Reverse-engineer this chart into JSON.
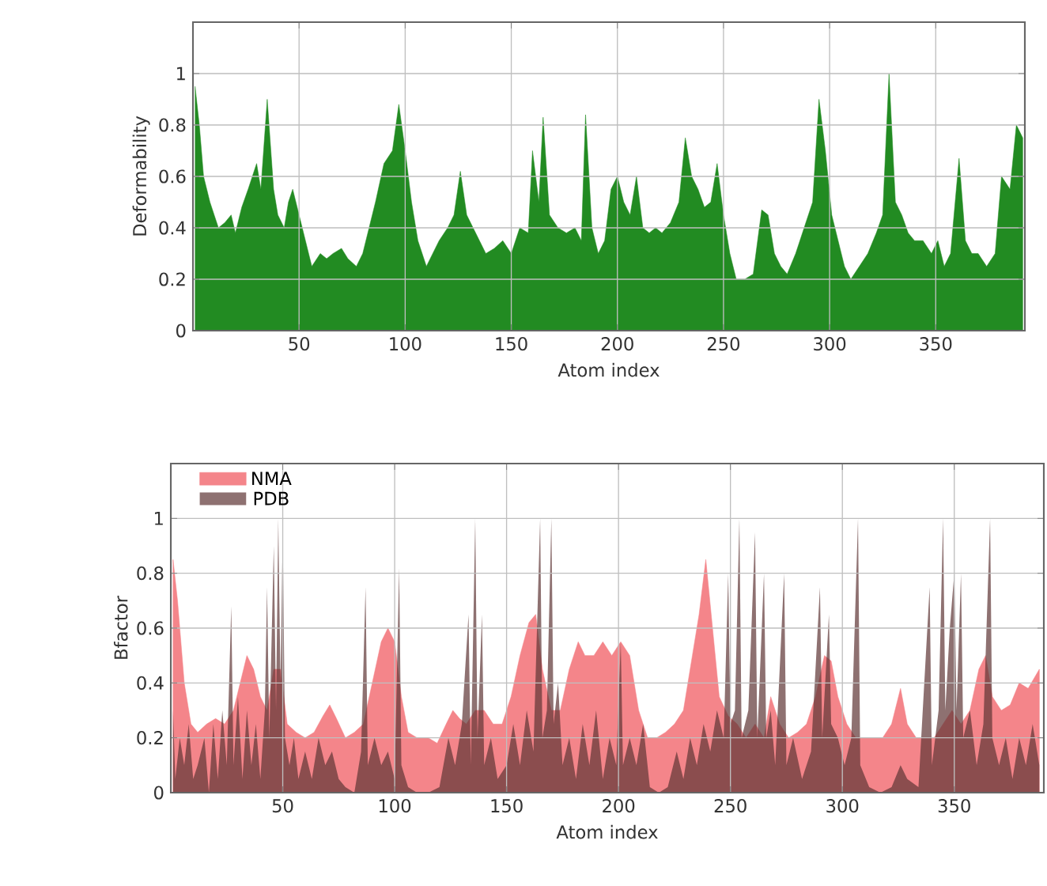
{
  "chart_data": [
    {
      "type": "area",
      "xlabel": "Atom index",
      "ylabel": "Deformability",
      "color": "#228b22",
      "xlim": [
        0,
        392
      ],
      "ylim": [
        0,
        1.2
      ],
      "xticks": [
        50,
        100,
        150,
        200,
        250,
        300,
        350
      ],
      "yticks": [
        0,
        0.2,
        0.4,
        0.6,
        0.8,
        1
      ],
      "grid": true,
      "x": [
        1,
        3,
        5,
        8,
        10,
        12,
        15,
        18,
        20,
        23,
        26,
        28,
        30,
        32,
        35,
        38,
        40,
        43,
        45,
        47,
        50,
        53,
        56,
        60,
        63,
        66,
        70,
        73,
        77,
        80,
        83,
        86,
        90,
        94,
        97,
        100,
        103,
        106,
        110,
        113,
        116,
        120,
        123,
        126,
        129,
        132,
        135,
        138,
        142,
        146,
        150,
        154,
        158,
        160,
        163,
        165,
        168,
        172,
        176,
        180,
        183,
        185,
        188,
        191,
        194,
        197,
        200,
        203,
        206,
        209,
        212,
        215,
        218,
        221,
        225,
        229,
        232,
        235,
        238,
        241,
        244,
        247,
        250,
        253,
        256,
        260,
        264,
        268,
        271,
        274,
        277,
        280,
        284,
        288,
        292,
        295,
        298,
        301,
        304,
        307,
        310,
        314,
        318,
        322,
        325,
        328,
        331,
        334,
        337,
        340,
        344,
        348,
        351,
        354,
        357,
        361,
        364,
        367,
        370,
        374,
        378,
        381,
        385,
        388,
        391
      ],
      "values": [
        0.95,
        0.8,
        0.6,
        0.5,
        0.45,
        0.4,
        0.42,
        0.45,
        0.38,
        0.48,
        0.55,
        0.6,
        0.65,
        0.55,
        0.9,
        0.55,
        0.45,
        0.4,
        0.5,
        0.55,
        0.45,
        0.35,
        0.25,
        0.3,
        0.28,
        0.3,
        0.32,
        0.28,
        0.25,
        0.3,
        0.4,
        0.5,
        0.65,
        0.7,
        0.88,
        0.7,
        0.5,
        0.35,
        0.25,
        0.3,
        0.35,
        0.4,
        0.45,
        0.62,
        0.45,
        0.4,
        0.35,
        0.3,
        0.32,
        0.35,
        0.3,
        0.4,
        0.38,
        0.7,
        0.5,
        0.83,
        0.45,
        0.4,
        0.38,
        0.4,
        0.35,
        0.84,
        0.4,
        0.3,
        0.35,
        0.55,
        0.6,
        0.5,
        0.45,
        0.6,
        0.4,
        0.38,
        0.4,
        0.38,
        0.42,
        0.5,
        0.75,
        0.6,
        0.55,
        0.48,
        0.5,
        0.65,
        0.45,
        0.3,
        0.2,
        0.2,
        0.22,
        0.47,
        0.45,
        0.3,
        0.25,
        0.22,
        0.3,
        0.4,
        0.5,
        0.9,
        0.7,
        0.45,
        0.35,
        0.25,
        0.2,
        0.25,
        0.3,
        0.38,
        0.45,
        1.0,
        0.5,
        0.45,
        0.38,
        0.35,
        0.35,
        0.3,
        0.35,
        0.25,
        0.3,
        0.67,
        0.35,
        0.3,
        0.3,
        0.25,
        0.3,
        0.6,
        0.55,
        0.8,
        0.75
      ]
    },
    {
      "type": "area",
      "xlabel": "Atom index",
      "ylabel": "Bfactor",
      "xlim": [
        0,
        390
      ],
      "ylim": [
        0,
        1.2
      ],
      "xticks": [
        50,
        100,
        150,
        200,
        250,
        300,
        350
      ],
      "yticks": [
        0,
        0.2,
        0.4,
        0.6,
        0.8,
        1
      ],
      "grid": true,
      "legend": "top left",
      "series": [
        {
          "name": "NMA",
          "color": "#f4858a",
          "x": [
            1,
            3,
            6,
            9,
            12,
            16,
            20,
            24,
            28,
            31,
            34,
            37,
            40,
            43,
            46,
            49,
            52,
            56,
            60,
            64,
            68,
            71,
            74,
            78,
            82,
            86,
            90,
            94,
            97,
            100,
            103,
            106,
            110,
            115,
            119,
            123,
            126,
            129,
            132,
            136,
            140,
            144,
            148,
            152,
            156,
            160,
            163,
            166,
            170,
            174,
            178,
            182,
            185,
            189,
            193,
            197,
            201,
            205,
            209,
            213,
            217,
            221,
            225,
            229,
            233,
            236,
            239,
            242,
            245,
            249,
            253,
            257,
            261,
            265,
            268,
            272,
            276,
            280,
            284,
            288,
            292,
            295,
            298,
            302,
            306,
            310,
            314,
            318,
            322,
            326,
            329,
            333,
            337,
            341,
            345,
            349,
            353,
            357,
            361,
            364,
            367,
            371,
            375,
            379,
            383,
            388
          ],
          "values": [
            0.85,
            0.7,
            0.4,
            0.25,
            0.22,
            0.25,
            0.27,
            0.25,
            0.3,
            0.4,
            0.5,
            0.45,
            0.35,
            0.3,
            0.45,
            0.45,
            0.25,
            0.22,
            0.2,
            0.22,
            0.28,
            0.32,
            0.27,
            0.2,
            0.22,
            0.25,
            0.4,
            0.55,
            0.6,
            0.55,
            0.35,
            0.22,
            0.2,
            0.2,
            0.18,
            0.25,
            0.3,
            0.27,
            0.25,
            0.3,
            0.3,
            0.25,
            0.25,
            0.35,
            0.5,
            0.62,
            0.65,
            0.45,
            0.3,
            0.3,
            0.45,
            0.55,
            0.5,
            0.5,
            0.55,
            0.5,
            0.55,
            0.5,
            0.3,
            0.2,
            0.2,
            0.22,
            0.25,
            0.3,
            0.5,
            0.65,
            0.85,
            0.6,
            0.35,
            0.28,
            0.25,
            0.2,
            0.25,
            0.2,
            0.35,
            0.25,
            0.2,
            0.22,
            0.25,
            0.35,
            0.5,
            0.48,
            0.35,
            0.25,
            0.2,
            0.2,
            0.2,
            0.2,
            0.25,
            0.38,
            0.25,
            0.2,
            0.2,
            0.2,
            0.25,
            0.3,
            0.25,
            0.3,
            0.45,
            0.5,
            0.35,
            0.3,
            0.32,
            0.4,
            0.38,
            0.45
          ]
        },
        {
          "name": "PDB",
          "color": "#5e3434",
          "x": [
            1,
            2,
            4,
            6,
            8,
            10,
            12,
            15,
            17,
            19,
            21,
            23,
            25,
            27,
            28,
            30,
            32,
            34,
            36,
            38,
            40,
            42,
            43,
            44,
            46,
            47,
            48,
            49,
            50,
            51,
            53,
            55,
            57,
            60,
            63,
            66,
            69,
            72,
            75,
            78,
            82,
            85,
            87,
            88,
            91,
            94,
            97,
            100,
            102,
            103,
            106,
            110,
            115,
            120,
            124,
            127,
            130,
            133,
            134,
            136,
            137,
            139,
            140,
            143,
            146,
            150,
            153,
            156,
            159,
            162,
            165,
            166,
            168,
            170,
            171,
            173,
            175,
            178,
            181,
            184,
            187,
            190,
            193,
            196,
            199,
            201,
            202,
            205,
            208,
            211,
            214,
            218,
            222,
            226,
            229,
            232,
            235,
            238,
            241,
            244,
            247,
            249,
            250,
            252,
            254,
            255,
            258,
            261,
            262,
            265,
            266,
            268,
            270,
            274,
            275,
            278,
            282,
            286,
            290,
            291,
            294,
            295,
            298,
            301,
            304,
            307,
            308,
            312,
            317,
            322,
            326,
            329,
            334,
            339,
            340,
            343,
            345,
            346,
            348,
            350,
            351,
            353,
            354,
            357,
            360,
            363,
            366,
            367,
            370,
            373,
            376,
            379,
            382,
            385,
            388
          ],
          "values": [
            0.3,
            0.05,
            0.2,
            0.1,
            0.25,
            0.05,
            0.1,
            0.2,
            0.0,
            0.25,
            0.05,
            0.3,
            0.1,
            0.68,
            0.1,
            0.35,
            0.05,
            0.3,
            0.1,
            0.25,
            0.05,
            0.3,
            0.75,
            0.2,
            0.9,
            0.3,
            1.0,
            0.4,
            0.95,
            0.2,
            0.1,
            0.2,
            0.05,
            0.15,
            0.05,
            0.2,
            0.1,
            0.15,
            0.05,
            0.02,
            0.0,
            0.15,
            0.75,
            0.1,
            0.2,
            0.1,
            0.15,
            0.05,
            0.82,
            0.1,
            0.02,
            0.0,
            0.0,
            0.02,
            0.2,
            0.1,
            0.25,
            0.65,
            0.1,
            1.0,
            0.2,
            0.65,
            0.1,
            0.2,
            0.05,
            0.1,
            0.25,
            0.1,
            0.3,
            0.15,
            1.0,
            0.2,
            0.3,
            1.0,
            0.25,
            0.4,
            0.1,
            0.2,
            0.05,
            0.25,
            0.1,
            0.3,
            0.05,
            0.2,
            0.1,
            0.55,
            0.1,
            0.2,
            0.1,
            0.25,
            0.02,
            0.0,
            0.02,
            0.15,
            0.05,
            0.2,
            0.1,
            0.25,
            0.15,
            0.3,
            0.2,
            0.8,
            0.25,
            0.3,
            1.0,
            0.2,
            0.3,
            0.95,
            0.2,
            0.8,
            0.2,
            0.3,
            0.1,
            0.8,
            0.1,
            0.2,
            0.05,
            0.15,
            0.75,
            0.2,
            0.65,
            0.25,
            0.2,
            0.1,
            0.2,
            1.0,
            0.1,
            0.02,
            0.0,
            0.02,
            0.1,
            0.05,
            0.02,
            0.75,
            0.1,
            0.3,
            1.0,
            0.3,
            0.6,
            0.8,
            0.3,
            0.8,
            0.2,
            0.3,
            0.1,
            0.25,
            1.0,
            0.2,
            0.1,
            0.2,
            0.05,
            0.2,
            0.1,
            0.25,
            0.1
          ]
        }
      ]
    }
  ]
}
